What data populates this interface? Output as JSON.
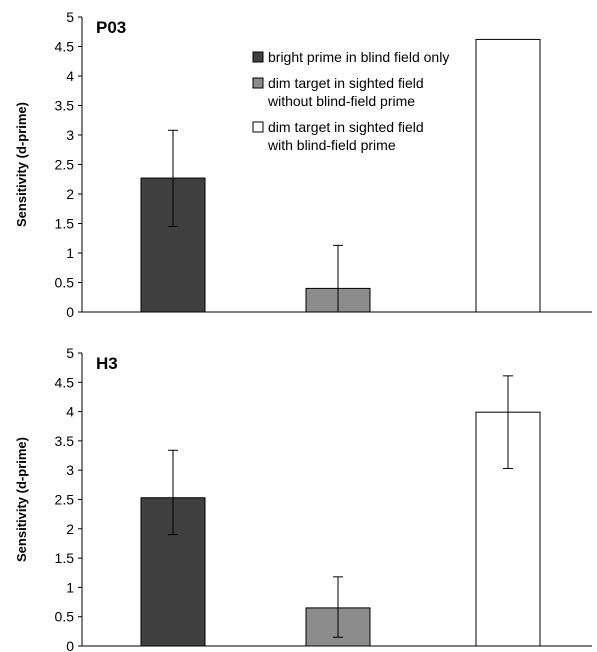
{
  "chart_data": [
    {
      "type": "bar",
      "title": "P03",
      "ylabel": "Sensitivity (d-prime)",
      "ylim": [
        0,
        5
      ],
      "yticks": [
        "0",
        "0.5",
        "1",
        "1.5",
        "2",
        "2.5",
        "3",
        "3.5",
        "4",
        "4.5",
        "5"
      ],
      "categories": [
        "",
        "",
        ""
      ],
      "values": [
        2.27,
        0.4,
        4.62
      ],
      "error_low": [
        1.45,
        0.0,
        null
      ],
      "error_high": [
        3.08,
        1.13,
        null
      ],
      "colors": [
        "#404040",
        "#8c8c8c",
        "#ffffff"
      ],
      "legend": {
        "placement": "top-center",
        "entries": [
          {
            "lines": [
              "bright prime in blind field only"
            ],
            "color": "#404040"
          },
          {
            "lines": [
              "dim target in sighted field",
              "without blind-field prime"
            ],
            "color": "#8c8c8c"
          },
          {
            "lines": [
              "dim target in sighted field",
              "with blind-field prime"
            ],
            "color": "#ffffff"
          }
        ]
      }
    },
    {
      "type": "bar",
      "title": "H3",
      "ylabel": "Sensitivity (d-prime)",
      "ylim": [
        0,
        5
      ],
      "yticks": [
        "0",
        "0.5",
        "1",
        "1.5",
        "2",
        "2.5",
        "3",
        "3.5",
        "4",
        "4.5",
        "5"
      ],
      "categories": [
        "",
        "",
        ""
      ],
      "values": [
        2.53,
        0.65,
        3.99
      ],
      "error_low": [
        1.9,
        0.15,
        3.03
      ],
      "error_high": [
        3.34,
        1.18,
        4.61
      ],
      "colors": [
        "#404040",
        "#8c8c8c",
        "#ffffff"
      ]
    }
  ]
}
